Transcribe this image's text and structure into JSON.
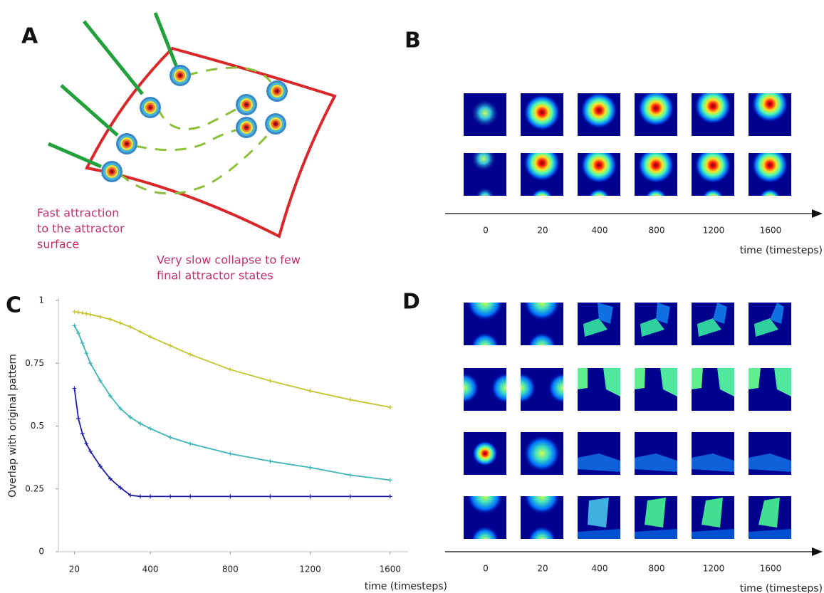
{
  "panel_a": {
    "label": "A",
    "note_fast": [
      "Fast attraction",
      "to the attractor",
      "surface"
    ],
    "note_slow": [
      "Very slow collapse to few",
      "final attractor states"
    ]
  },
  "panel_b": {
    "label": "B",
    "time_labels": [
      "0",
      "20",
      "400",
      "800",
      "1200",
      "1600"
    ],
    "axis_label": "time (timesteps)"
  },
  "chart_data": {
    "type": "line",
    "panel_label": "C",
    "x_label": "time (timesteps)",
    "y_label": "Overlap with original pattern",
    "x": [
      20,
      40,
      60,
      80,
      100,
      150,
      200,
      250,
      300,
      350,
      400,
      500,
      600,
      800,
      1000,
      1200,
      1400,
      1600
    ],
    "series": [
      {
        "color": "#c4c432",
        "values": [
          0.955,
          0.953,
          0.95,
          0.947,
          0.944,
          0.935,
          0.925,
          0.91,
          0.895,
          0.875,
          0.855,
          0.82,
          0.785,
          0.725,
          0.68,
          0.64,
          0.605,
          0.575
        ]
      },
      {
        "color": "#3cb4b8",
        "values": [
          0.9,
          0.87,
          0.83,
          0.79,
          0.75,
          0.68,
          0.62,
          0.57,
          0.535,
          0.51,
          0.49,
          0.455,
          0.43,
          0.39,
          0.36,
          0.335,
          0.305,
          0.285
        ]
      },
      {
        "color": "#1e1eaa",
        "values": [
          0.65,
          0.53,
          0.47,
          0.43,
          0.4,
          0.34,
          0.29,
          0.255,
          0.225,
          0.22,
          0.22,
          0.22,
          0.22,
          0.22,
          0.22,
          0.22,
          0.22,
          0.22
        ]
      }
    ],
    "xlim": [
      -60,
      1690
    ],
    "xticks": [
      20,
      400,
      800,
      1200,
      1600
    ],
    "ylim": [
      0,
      1
    ],
    "yticks": [
      0,
      0.25,
      0.5,
      0.75,
      1
    ]
  },
  "panel_d": {
    "label": "D",
    "time_labels": [
      "0",
      "20",
      "400",
      "800",
      "1200",
      "1600"
    ],
    "axis_label": "time (timesteps)"
  }
}
